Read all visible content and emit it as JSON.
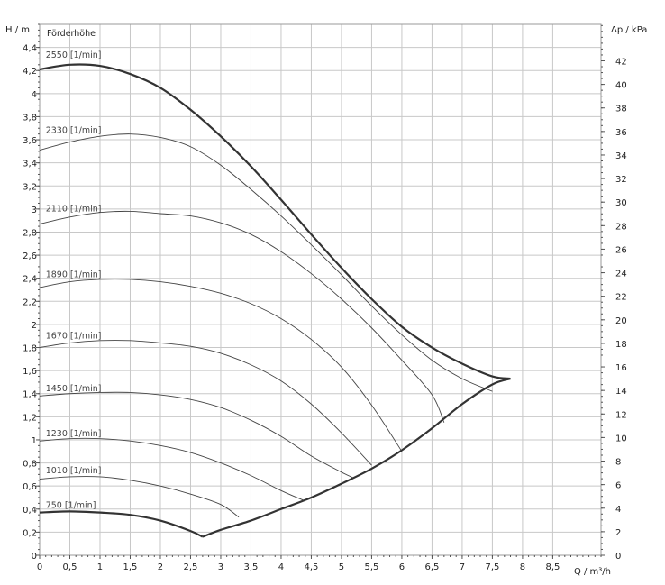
{
  "chart_data": {
    "type": "line",
    "title": "Förderhöhe",
    "xlabel": "Q / m³/h",
    "ylabel": "H / m",
    "y2label": "Δp / kPa",
    "xlim": [
      0,
      9.3
    ],
    "ylim": [
      0,
      4.6
    ],
    "y2lim": [
      0,
      45.1
    ],
    "grid": true,
    "x_ticks": [
      {
        "v": 0,
        "label": "0"
      },
      {
        "v": 0.5,
        "label": "0,5"
      },
      {
        "v": 1,
        "label": "1"
      },
      {
        "v": 1.5,
        "label": "1,5"
      },
      {
        "v": 2,
        "label": "2"
      },
      {
        "v": 2.5,
        "label": "2,5"
      },
      {
        "v": 3,
        "label": "3"
      },
      {
        "v": 3.5,
        "label": "3,5"
      },
      {
        "v": 4,
        "label": "4"
      },
      {
        "v": 4.5,
        "label": "4,5"
      },
      {
        "v": 5,
        "label": "5"
      },
      {
        "v": 5.5,
        "label": "5,5"
      },
      {
        "v": 6,
        "label": "6"
      },
      {
        "v": 6.5,
        "label": "6,5"
      },
      {
        "v": 7,
        "label": "7"
      },
      {
        "v": 7.5,
        "label": "7,5"
      },
      {
        "v": 8,
        "label": "8"
      },
      {
        "v": 8.5,
        "label": "8,5"
      }
    ],
    "y_ticks": [
      {
        "v": 0,
        "label": "0"
      },
      {
        "v": 0.2,
        "label": "0,2"
      },
      {
        "v": 0.4,
        "label": "0,4"
      },
      {
        "v": 0.6,
        "label": "0,6"
      },
      {
        "v": 0.8,
        "label": "0,8"
      },
      {
        "v": 1,
        "label": "1"
      },
      {
        "v": 1.2,
        "label": "1,2"
      },
      {
        "v": 1.4,
        "label": "1,4"
      },
      {
        "v": 1.6,
        "label": "1,6"
      },
      {
        "v": 1.8,
        "label": "1,8"
      },
      {
        "v": 2,
        "label": "2"
      },
      {
        "v": 2.2,
        "label": "2,2"
      },
      {
        "v": 2.4,
        "label": "2,4"
      },
      {
        "v": 2.6,
        "label": "2,6"
      },
      {
        "v": 2.8,
        "label": "2,8"
      },
      {
        "v": 3,
        "label": "3"
      },
      {
        "v": 3.2,
        "label": "3,2"
      },
      {
        "v": 3.4,
        "label": "3,4"
      },
      {
        "v": 3.6,
        "label": "3,6"
      },
      {
        "v": 3.8,
        "label": "3,8"
      },
      {
        "v": 4,
        "label": "4"
      },
      {
        "v": 4.2,
        "label": "4,2"
      },
      {
        "v": 4.4,
        "label": "4,4"
      }
    ],
    "y2_ticks": [
      {
        "v": 0,
        "label": "0"
      },
      {
        "v": 2,
        "label": "2"
      },
      {
        "v": 4,
        "label": "4"
      },
      {
        "v": 6,
        "label": "6"
      },
      {
        "v": 8,
        "label": "8"
      },
      {
        "v": 10,
        "label": "10"
      },
      {
        "v": 12,
        "label": "12"
      },
      {
        "v": 14,
        "label": "14"
      },
      {
        "v": 16,
        "label": "16"
      },
      {
        "v": 18,
        "label": "18"
      },
      {
        "v": 20,
        "label": "20"
      },
      {
        "v": 22,
        "label": "22"
      },
      {
        "v": 24,
        "label": "24"
      },
      {
        "v": 26,
        "label": "26"
      },
      {
        "v": 28,
        "label": "28"
      },
      {
        "v": 30,
        "label": "30"
      },
      {
        "v": 32,
        "label": "32"
      },
      {
        "v": 34,
        "label": "34"
      },
      {
        "v": 36,
        "label": "36"
      },
      {
        "v": 38,
        "label": "38"
      },
      {
        "v": 40,
        "label": "40"
      },
      {
        "v": 42,
        "label": "42"
      }
    ],
    "series": [
      {
        "name": "2550 [1/min]",
        "bold": true,
        "label_at": [
          0.1,
          4.31
        ],
        "x": [
          0,
          0.5,
          1,
          1.5,
          2,
          2.5,
          3,
          3.5,
          4,
          4.5,
          5,
          5.5,
          6,
          6.5,
          7,
          7.5,
          7.8
        ],
        "y": [
          4.21,
          4.25,
          4.24,
          4.17,
          4.05,
          3.86,
          3.63,
          3.37,
          3.08,
          2.78,
          2.49,
          2.22,
          1.98,
          1.8,
          1.66,
          1.55,
          1.53
        ]
      },
      {
        "name": "2330 [1/min]",
        "bold": false,
        "label_at": [
          0.1,
          3.66
        ],
        "x": [
          0,
          0.5,
          1,
          1.5,
          2,
          2.5,
          3,
          3.5,
          4,
          4.5,
          5,
          5.5,
          6,
          6.5,
          7,
          7.5
        ],
        "y": [
          3.51,
          3.58,
          3.63,
          3.65,
          3.62,
          3.54,
          3.38,
          3.17,
          2.94,
          2.69,
          2.43,
          2.16,
          1.91,
          1.69,
          1.53,
          1.42
        ]
      },
      {
        "name": "2110 [1/min]",
        "bold": false,
        "label_at": [
          0.1,
          2.98
        ],
        "x": [
          0,
          0.5,
          1,
          1.5,
          2,
          2.5,
          3,
          3.5,
          4,
          4.5,
          5,
          5.5,
          6,
          6.5,
          6.7
        ],
        "y": [
          2.87,
          2.93,
          2.97,
          2.98,
          2.96,
          2.94,
          2.88,
          2.78,
          2.63,
          2.44,
          2.22,
          1.97,
          1.69,
          1.39,
          1.15
        ]
      },
      {
        "name": "1890 [1/min]",
        "bold": false,
        "label_at": [
          0.1,
          2.41
        ],
        "x": [
          0,
          0.5,
          1,
          1.5,
          2,
          2.5,
          3,
          3.5,
          4,
          4.5,
          5,
          5.5,
          6
        ],
        "y": [
          2.32,
          2.37,
          2.39,
          2.39,
          2.37,
          2.33,
          2.27,
          2.18,
          2.05,
          1.87,
          1.63,
          1.3,
          0.9
        ]
      },
      {
        "name": "1670 [1/min]",
        "bold": false,
        "label_at": [
          0.1,
          1.88
        ],
        "x": [
          0,
          0.5,
          1,
          1.5,
          2,
          2.5,
          3,
          3.5,
          4,
          4.5,
          5,
          5.5
        ],
        "y": [
          1.8,
          1.84,
          1.86,
          1.86,
          1.84,
          1.81,
          1.75,
          1.65,
          1.51,
          1.31,
          1.06,
          0.78
        ]
      },
      {
        "name": "1450 [1/min]",
        "bold": false,
        "label_at": [
          0.1,
          1.42
        ],
        "x": [
          0,
          0.5,
          1,
          1.5,
          2,
          2.5,
          3,
          3.5,
          4,
          4.5,
          5,
          5.2
        ],
        "y": [
          1.38,
          1.4,
          1.41,
          1.41,
          1.39,
          1.35,
          1.28,
          1.17,
          1.03,
          0.86,
          0.72,
          0.67
        ]
      },
      {
        "name": "1230 [1/min]",
        "bold": false,
        "label_at": [
          0.1,
          1.03
        ],
        "x": [
          0,
          0.5,
          1,
          1.5,
          2,
          2.5,
          3,
          3.5,
          4,
          4.4
        ],
        "y": [
          0.99,
          1.01,
          1.01,
          0.99,
          0.95,
          0.89,
          0.8,
          0.69,
          0.56,
          0.47
        ]
      },
      {
        "name": "1010 [1/min]",
        "bold": false,
        "label_at": [
          0.1,
          0.71
        ],
        "x": [
          0,
          0.5,
          1,
          1.5,
          2,
          2.5,
          3,
          3.3
        ],
        "y": [
          0.66,
          0.68,
          0.68,
          0.65,
          0.6,
          0.53,
          0.44,
          0.33
        ]
      },
      {
        "name": "750 [1/min]",
        "bold": true,
        "label_at": [
          0.1,
          0.41
        ],
        "x": [
          0,
          0.5,
          1,
          1.5,
          2,
          2.5,
          2.7
        ],
        "y": [
          0.37,
          0.38,
          0.37,
          0.35,
          0.3,
          0.21,
          0.16
        ]
      },
      {
        "name": "",
        "bold": true,
        "label_at": null,
        "x": [
          2.7,
          3,
          3.5,
          4,
          4.5,
          5,
          5.5,
          6,
          6.5,
          7,
          7.5,
          7.8
        ],
        "y": [
          0.16,
          0.22,
          0.3,
          0.4,
          0.5,
          0.62,
          0.75,
          0.91,
          1.1,
          1.31,
          1.48,
          1.53
        ]
      }
    ]
  }
}
